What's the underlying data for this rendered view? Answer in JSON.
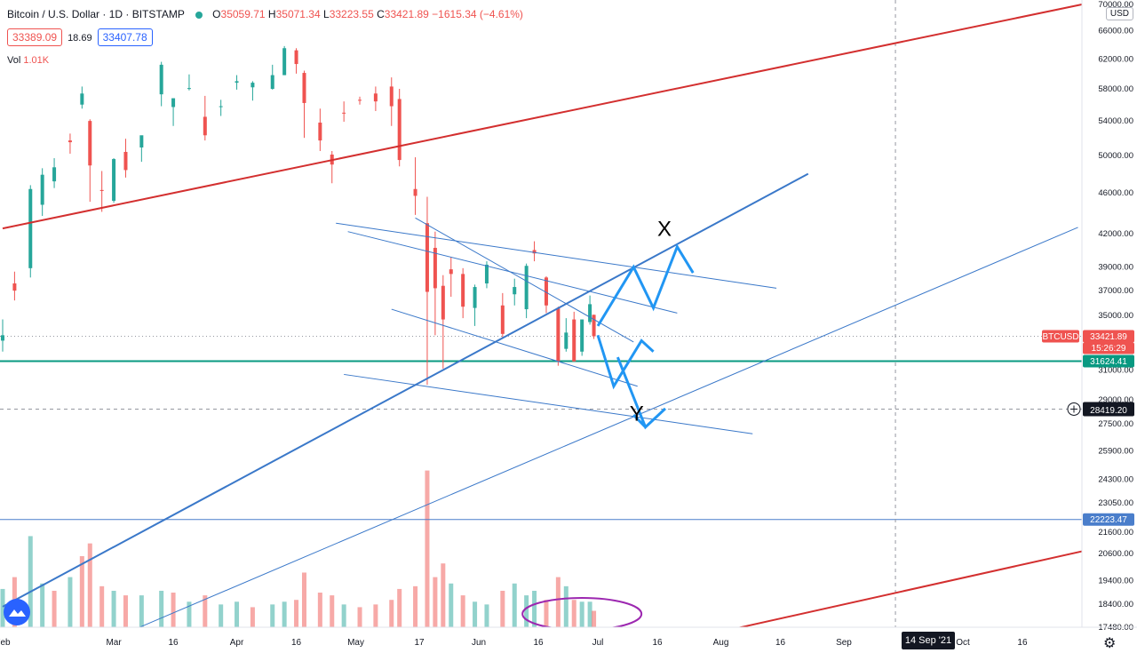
{
  "legend": {
    "title": "Bitcoin / U.S. Dollar · 1D · BITSTAMP",
    "o_label": "O",
    "o": "35059.71",
    "h_label": "H",
    "h": "35071.34",
    "l_label": "L",
    "l": "33223.55",
    "c_label": "C",
    "c": "33421.89",
    "change": "−1615.34 (−4.61%)",
    "bid": "33389.09",
    "spread": "18.69",
    "ask": "33407.78",
    "vol_label": "Vol",
    "vol": "1.01K"
  },
  "currency_button": "USD",
  "time_badge": "14 Sep '21",
  "drawing_labels": {
    "x": "X",
    "y": "Y"
  },
  "colors": {
    "up": "#26a69a",
    "down": "#ef5350",
    "trend_red": "#d32f2f",
    "trend_blue": "#3a78c9",
    "arrow": "#2196f3",
    "support": "#089981",
    "level": "#4a7ecb",
    "ellipse": "#9c27b0"
  },
  "chart_data": {
    "type": "candlestick",
    "symbol": "BTCUSD",
    "y_scale": "log",
    "ylim": [
      17480,
      70000
    ],
    "xlim": [
      "2021-02-01",
      "2021-10-31"
    ],
    "y_ticks": [
      "70000.00",
      "66000.00",
      "62000.00",
      "58000.00",
      "54000.00",
      "50000.00",
      "46000.00",
      "42000.00",
      "39000.00",
      "37000.00",
      "35000.00",
      "31000.00",
      "29000.00",
      "27500.00",
      "25900.00",
      "24300.00",
      "23050.00",
      "21600.00",
      "20600.00",
      "19400.00",
      "18400.00",
      "17480.00"
    ],
    "x_ticks": [
      {
        "label": "Feb",
        "date": "2021-02-01"
      },
      {
        "label": "Mar",
        "date": "2021-03-01"
      },
      {
        "label": "16",
        "date": "2021-03-16"
      },
      {
        "label": "Apr",
        "date": "2021-04-01"
      },
      {
        "label": "16",
        "date": "2021-04-16"
      },
      {
        "label": "May",
        "date": "2021-05-01"
      },
      {
        "label": "17",
        "date": "2021-05-17"
      },
      {
        "label": "Jun",
        "date": "2021-06-01"
      },
      {
        "label": "16",
        "date": "2021-06-16"
      },
      {
        "label": "Jul",
        "date": "2021-07-01"
      },
      {
        "label": "16",
        "date": "2021-07-16"
      },
      {
        "label": "Aug",
        "date": "2021-08-01"
      },
      {
        "label": "16",
        "date": "2021-08-16"
      },
      {
        "label": "Sep",
        "date": "2021-09-01"
      },
      {
        "label": "Oct",
        "date": "2021-10-01"
      },
      {
        "label": "16",
        "date": "2021-10-16"
      }
    ],
    "price_labels": [
      {
        "text": "BTCUSD",
        "value": 33421.89,
        "kind": "symbol"
      },
      {
        "text": "33421.89",
        "value": 33421.89,
        "kind": "last"
      },
      {
        "text": "15:26:29",
        "value": 33421.89,
        "kind": "countdown"
      },
      {
        "text": "31624.41",
        "value": 31624.41,
        "kind": "support"
      },
      {
        "text": "28419.20",
        "value": 28419.2,
        "kind": "crosshair"
      },
      {
        "text": "22223.47",
        "value": 22223.47,
        "kind": "level"
      }
    ],
    "horizontal_lines": [
      {
        "value": 31624.41,
        "style": "solid",
        "color": "support"
      },
      {
        "value": 22223.47,
        "style": "solid",
        "color": "level"
      },
      {
        "value": 33421.89,
        "style": "dotted",
        "color": "last"
      },
      {
        "value": 28419.2,
        "style": "dashed",
        "color": "crosshair"
      }
    ],
    "vertical_lines": [
      {
        "date": "2021-09-14",
        "style": "dashed"
      }
    ],
    "trendlines": [
      {
        "from": [
          "2021-02-01",
          42500
        ],
        "to": [
          "2021-10-31",
          70000
        ],
        "color": "trend_red",
        "width": 2
      },
      {
        "from": [
          "2021-07-20",
          16900
        ],
        "to": [
          "2021-10-31",
          20700
        ],
        "color": "trend_red",
        "width": 2
      },
      {
        "from": [
          "2021-02-01",
          18300
        ],
        "to": [
          "2021-08-23",
          48000
        ],
        "color": "trend_blue",
        "width": 2
      },
      {
        "from": [
          "2021-02-25",
          16800
        ],
        "to": [
          "2021-10-30",
          42600
        ],
        "color": "trend_blue",
        "width": 1
      },
      {
        "from": [
          "2021-04-26",
          43000
        ],
        "to": [
          "2021-08-15",
          37200
        ],
        "color": "trend_blue",
        "width": 1
      },
      {
        "from": [
          "2021-04-29",
          42200
        ],
        "to": [
          "2021-07-21",
          35200
        ],
        "color": "trend_blue",
        "width": 1
      },
      {
        "from": [
          "2021-05-16",
          43500
        ],
        "to": [
          "2021-07-10",
          33000
        ],
        "color": "trend_blue",
        "width": 1
      },
      {
        "from": [
          "2021-05-10",
          35500
        ],
        "to": [
          "2021-07-11",
          29900
        ],
        "color": "trend_blue",
        "width": 1
      },
      {
        "from": [
          "2021-04-28",
          30700
        ],
        "to": [
          "2021-08-09",
          26900
        ],
        "color": "trend_blue",
        "width": 1
      }
    ],
    "projection_arrows": [
      [
        [
          "2021-07-01",
          34200
        ],
        [
          "2021-07-10",
          39000
        ],
        [
          "2021-07-15",
          35600
        ],
        [
          "2021-07-21",
          40800
        ],
        [
          "2021-07-25",
          38500
        ]
      ],
      [
        [
          "2021-07-01",
          33500
        ],
        [
          "2021-07-05",
          29900
        ],
        [
          "2021-07-12",
          33100
        ],
        [
          "2021-07-15",
          32300
        ]
      ],
      [
        [
          "2021-07-06",
          31900
        ],
        [
          "2021-07-13",
          27300
        ],
        [
          "2021-07-18",
          28450
        ],
        [
          "2021-07-13",
          27300
        ],
        [
          "2021-07-10",
          28050
        ]
      ]
    ],
    "labels_at": {
      "x": [
        "2021-07-16",
        41800
      ],
      "y": [
        "2021-07-09",
        27700
      ]
    },
    "volume_ellipse": {
      "center_date": "2021-06-27",
      "span_days": 15
    },
    "candles": [
      {
        "d": "2021-02-01",
        "o": 33100,
        "h": 34700,
        "l": 32300,
        "c": 33500
      },
      {
        "d": "2021-02-04",
        "o": 37600,
        "h": 38600,
        "l": 36200,
        "c": 37000
      },
      {
        "d": "2021-02-08",
        "o": 38900,
        "h": 46800,
        "l": 38100,
        "c": 46400
      },
      {
        "d": "2021-02-11",
        "o": 44800,
        "h": 48600,
        "l": 43700,
        "c": 47900
      },
      {
        "d": "2021-02-14",
        "o": 47200,
        "h": 49700,
        "l": 46500,
        "c": 48700
      },
      {
        "d": "2021-02-18",
        "o": 51700,
        "h": 52500,
        "l": 50200,
        "c": 51500
      },
      {
        "d": "2021-02-21",
        "o": 56000,
        "h": 58300,
        "l": 55500,
        "c": 57400
      },
      {
        "d": "2021-02-23",
        "o": 54000,
        "h": 54200,
        "l": 45100,
        "c": 48900
      },
      {
        "d": "2021-02-26",
        "o": 46300,
        "h": 48300,
        "l": 44100,
        "c": 46200
      },
      {
        "d": "2021-03-01",
        "o": 45200,
        "h": 49700,
        "l": 45000,
        "c": 49600
      },
      {
        "d": "2021-03-04",
        "o": 50400,
        "h": 51900,
        "l": 47600,
        "c": 48400
      },
      {
        "d": "2021-03-08",
        "o": 50900,
        "h": 52200,
        "l": 49300,
        "c": 52300
      },
      {
        "d": "2021-03-13",
        "o": 57300,
        "h": 61600,
        "l": 55800,
        "c": 61200
      },
      {
        "d": "2021-03-16",
        "o": 55700,
        "h": 56800,
        "l": 53400,
        "c": 56800
      },
      {
        "d": "2021-03-20",
        "o": 58100,
        "h": 59900,
        "l": 57800,
        "c": 58100
      },
      {
        "d": "2021-03-24",
        "o": 54500,
        "h": 57100,
        "l": 51700,
        "c": 52300
      },
      {
        "d": "2021-03-28",
        "o": 55800,
        "h": 56600,
        "l": 54600,
        "c": 55800
      },
      {
        "d": "2021-04-01",
        "o": 58800,
        "h": 59800,
        "l": 57900,
        "c": 59000
      },
      {
        "d": "2021-04-05",
        "o": 58200,
        "h": 59000,
        "l": 56500,
        "c": 58800
      },
      {
        "d": "2021-04-10",
        "o": 58000,
        "h": 61200,
        "l": 57900,
        "c": 59800
      },
      {
        "d": "2021-04-13",
        "o": 59800,
        "h": 63800,
        "l": 59800,
        "c": 63500
      },
      {
        "d": "2021-04-16",
        "o": 63200,
        "h": 63500,
        "l": 60000,
        "c": 61300
      },
      {
        "d": "2021-04-18",
        "o": 60100,
        "h": 60400,
        "l": 52000,
        "c": 56200
      },
      {
        "d": "2021-04-22",
        "o": 53800,
        "h": 55500,
        "l": 50500,
        "c": 51700
      },
      {
        "d": "2021-04-25",
        "o": 50100,
        "h": 50500,
        "l": 47000,
        "c": 49000
      },
      {
        "d": "2021-04-28",
        "o": 55000,
        "h": 56400,
        "l": 53900,
        "c": 54900
      },
      {
        "d": "2021-05-02",
        "o": 56600,
        "h": 57000,
        "l": 56000,
        "c": 56500
      },
      {
        "d": "2021-05-06",
        "o": 57400,
        "h": 58300,
        "l": 55200,
        "c": 56400
      },
      {
        "d": "2021-05-10",
        "o": 58300,
        "h": 59500,
        "l": 53400,
        "c": 55800
      },
      {
        "d": "2021-05-12",
        "o": 56700,
        "h": 58000,
        "l": 48800,
        "c": 49500
      },
      {
        "d": "2021-05-16",
        "o": 46400,
        "h": 49800,
        "l": 43800,
        "c": 45700
      },
      {
        "d": "2021-05-19",
        "o": 43000,
        "h": 45600,
        "l": 30000,
        "c": 36900
      },
      {
        "d": "2021-05-21",
        "o": 40700,
        "h": 42200,
        "l": 33500,
        "c": 37200
      },
      {
        "d": "2021-05-23",
        "o": 37400,
        "h": 38300,
        "l": 31100,
        "c": 34700
      },
      {
        "d": "2021-05-25",
        "o": 38800,
        "h": 39900,
        "l": 36500,
        "c": 38400
      },
      {
        "d": "2021-05-28",
        "o": 38400,
        "h": 38900,
        "l": 34800,
        "c": 35700
      },
      {
        "d": "2021-05-31",
        "o": 35600,
        "h": 37500,
        "l": 34200,
        "c": 37300
      },
      {
        "d": "2021-06-03",
        "o": 37600,
        "h": 39500,
        "l": 37200,
        "c": 39200
      },
      {
        "d": "2021-06-07",
        "o": 35800,
        "h": 36800,
        "l": 33300,
        "c": 33600
      },
      {
        "d": "2021-06-10",
        "o": 36700,
        "h": 38000,
        "l": 35800,
        "c": 37300
      },
      {
        "d": "2021-06-13",
        "o": 35500,
        "h": 39300,
        "l": 34800,
        "c": 39100
      },
      {
        "d": "2021-06-15",
        "o": 40500,
        "h": 41300,
        "l": 39500,
        "c": 40200
      },
      {
        "d": "2021-06-18",
        "o": 38100,
        "h": 38200,
        "l": 35200,
        "c": 35800
      },
      {
        "d": "2021-06-21",
        "o": 35600,
        "h": 35700,
        "l": 31300,
        "c": 31600
      },
      {
        "d": "2021-06-23",
        "o": 32500,
        "h": 34800,
        "l": 32300,
        "c": 33700
      },
      {
        "d": "2021-06-25",
        "o": 34700,
        "h": 35300,
        "l": 31700,
        "c": 31600
      },
      {
        "d": "2021-06-27",
        "o": 32300,
        "h": 34700,
        "l": 32000,
        "c": 34700
      },
      {
        "d": "2021-06-29",
        "o": 34500,
        "h": 36600,
        "l": 34300,
        "c": 35900
      },
      {
        "d": "2021-06-30",
        "o": 35059.71,
        "h": 35071.34,
        "l": 33223.55,
        "c": 33421.89
      }
    ],
    "volume": [
      {
        "d": "2021-02-01",
        "v": 0.42,
        "up": true
      },
      {
        "d": "2021-02-04",
        "v": 0.55,
        "up": false
      },
      {
        "d": "2021-02-08",
        "v": 1.0,
        "up": true
      },
      {
        "d": "2021-02-11",
        "v": 0.48,
        "up": true
      },
      {
        "d": "2021-02-14",
        "v": 0.4,
        "up": false
      },
      {
        "d": "2021-02-18",
        "v": 0.55,
        "up": true
      },
      {
        "d": "2021-02-21",
        "v": 0.78,
        "up": false
      },
      {
        "d": "2021-02-23",
        "v": 0.92,
        "up": false
      },
      {
        "d": "2021-02-26",
        "v": 0.45,
        "up": false
      },
      {
        "d": "2021-03-01",
        "v": 0.4,
        "up": true
      },
      {
        "d": "2021-03-04",
        "v": 0.35,
        "up": false
      },
      {
        "d": "2021-03-08",
        "v": 0.35,
        "up": true
      },
      {
        "d": "2021-03-13",
        "v": 0.4,
        "up": true
      },
      {
        "d": "2021-03-16",
        "v": 0.38,
        "up": false
      },
      {
        "d": "2021-03-20",
        "v": 0.28,
        "up": true
      },
      {
        "d": "2021-03-24",
        "v": 0.35,
        "up": false
      },
      {
        "d": "2021-03-28",
        "v": 0.25,
        "up": true
      },
      {
        "d": "2021-04-01",
        "v": 0.28,
        "up": true
      },
      {
        "d": "2021-04-05",
        "v": 0.22,
        "up": false
      },
      {
        "d": "2021-04-10",
        "v": 0.25,
        "up": true
      },
      {
        "d": "2021-04-13",
        "v": 0.28,
        "up": true
      },
      {
        "d": "2021-04-16",
        "v": 0.3,
        "up": false
      },
      {
        "d": "2021-04-18",
        "v": 0.6,
        "up": false
      },
      {
        "d": "2021-04-22",
        "v": 0.38,
        "up": false
      },
      {
        "d": "2021-04-25",
        "v": 0.35,
        "up": false
      },
      {
        "d": "2021-04-28",
        "v": 0.25,
        "up": true
      },
      {
        "d": "2021-05-02",
        "v": 0.22,
        "up": false
      },
      {
        "d": "2021-05-06",
        "v": 0.25,
        "up": false
      },
      {
        "d": "2021-05-10",
        "v": 0.3,
        "up": false
      },
      {
        "d": "2021-05-12",
        "v": 0.42,
        "up": false
      },
      {
        "d": "2021-05-16",
        "v": 0.45,
        "up": false
      },
      {
        "d": "2021-05-19",
        "v": 1.72,
        "up": false
      },
      {
        "d": "2021-05-21",
        "v": 0.55,
        "up": false
      },
      {
        "d": "2021-05-23",
        "v": 0.7,
        "up": false
      },
      {
        "d": "2021-05-25",
        "v": 0.48,
        "up": true
      },
      {
        "d": "2021-05-28",
        "v": 0.35,
        "up": false
      },
      {
        "d": "2021-05-31",
        "v": 0.28,
        "up": true
      },
      {
        "d": "2021-06-03",
        "v": 0.25,
        "up": true
      },
      {
        "d": "2021-06-07",
        "v": 0.4,
        "up": false
      },
      {
        "d": "2021-06-10",
        "v": 0.48,
        "up": true
      },
      {
        "d": "2021-06-13",
        "v": 0.35,
        "up": true
      },
      {
        "d": "2021-06-15",
        "v": 0.4,
        "up": true
      },
      {
        "d": "2021-06-18",
        "v": 0.3,
        "up": false
      },
      {
        "d": "2021-06-21",
        "v": 0.55,
        "up": false
      },
      {
        "d": "2021-06-23",
        "v": 0.45,
        "up": true
      },
      {
        "d": "2021-06-25",
        "v": 0.3,
        "up": false
      },
      {
        "d": "2021-06-27",
        "v": 0.28,
        "up": true
      },
      {
        "d": "2021-06-29",
        "v": 0.28,
        "up": true
      },
      {
        "d": "2021-06-30",
        "v": 0.18,
        "up": false
      }
    ]
  }
}
